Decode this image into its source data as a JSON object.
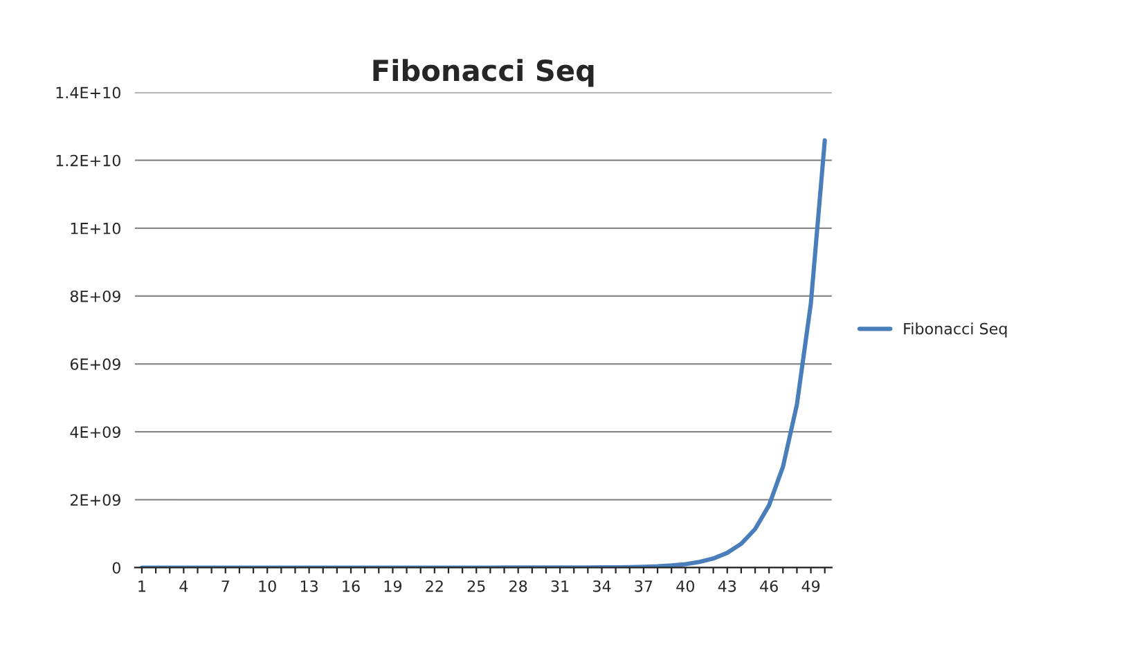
{
  "chart_data": {
    "type": "line",
    "title": "Fibonacci Seq",
    "categories": [
      "1",
      null,
      null,
      "4",
      null,
      null,
      "7",
      null,
      null,
      "10",
      null,
      null,
      "13",
      null,
      null,
      "16",
      null,
      null,
      "19",
      null,
      null,
      "22",
      null,
      null,
      "25",
      null,
      null,
      "28",
      null,
      null,
      "31",
      null,
      null,
      "34",
      null,
      null,
      "37",
      null,
      null,
      "40",
      null,
      null,
      "43",
      null,
      null,
      "46",
      null,
      null,
      "49",
      null
    ],
    "series": [
      {
        "name": "Fibonacci Seq",
        "color": "#4a7ebb",
        "values": [
          1,
          1,
          2,
          3,
          5,
          8,
          13,
          21,
          34,
          55,
          89,
          144,
          233,
          377,
          610,
          987,
          1597,
          2584,
          4181,
          6765,
          10946,
          17711,
          28657,
          46368,
          75025,
          121393,
          196418,
          317811,
          514229,
          832040,
          1346269,
          2178309,
          3524578,
          5702887,
          9227465,
          14930352,
          24157817,
          39088169,
          63245986,
          102334155,
          165580141,
          267914296,
          433494437,
          701408733,
          1134903170,
          1836311903,
          2971215073,
          4807526976,
          7778742049,
          12586269025
        ]
      }
    ],
    "ylim": [
      0,
      14000000000
    ],
    "yticks": [
      {
        "value": 0,
        "label": "0"
      },
      {
        "value": 2000000000,
        "label": "2E+09"
      },
      {
        "value": 4000000000,
        "label": "4E+09"
      },
      {
        "value": 6000000000,
        "label": "6E+09"
      },
      {
        "value": 8000000000,
        "label": "8E+09"
      },
      {
        "value": 10000000000,
        "label": "1E+10"
      },
      {
        "value": 12000000000,
        "label": "1.2E+10"
      },
      {
        "value": 14000000000,
        "label": "1.4E+10"
      }
    ],
    "grid": "y",
    "legend": "right",
    "marker": "none",
    "line_style": "solid"
  }
}
